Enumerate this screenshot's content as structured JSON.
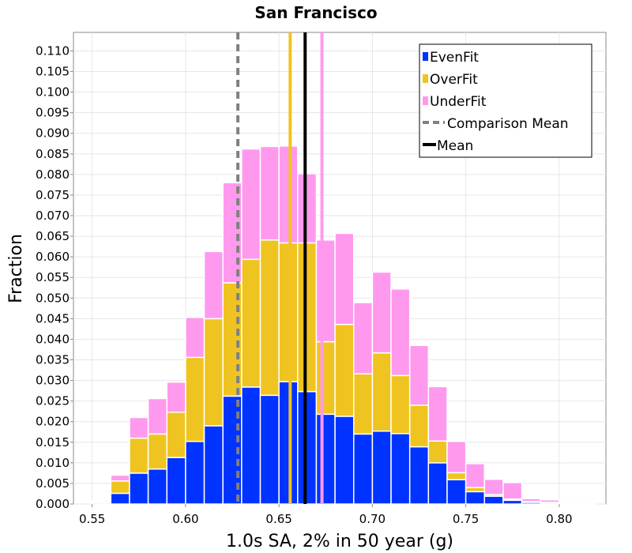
{
  "chart_data": {
    "type": "bar",
    "stacked": true,
    "title": "San Francisco",
    "xlabel": "1.0s SA, 2% in 50 year (g)",
    "ylabel": "Fraction",
    "xlim": [
      0.54,
      0.825
    ],
    "ylim": [
      0.0,
      0.1145
    ],
    "xticks": [
      "0.55",
      "0.60",
      "0.65",
      "0.70",
      "0.75",
      "0.80"
    ],
    "xtick_values": [
      0.55,
      0.6,
      0.65,
      0.7,
      0.75,
      0.8
    ],
    "yticks": [
      "0.000",
      "0.005",
      "0.010",
      "0.015",
      "0.020",
      "0.025",
      "0.030",
      "0.035",
      "0.040",
      "0.045",
      "0.050",
      "0.055",
      "0.060",
      "0.065",
      "0.070",
      "0.075",
      "0.080",
      "0.085",
      "0.090",
      "0.095",
      "0.100",
      "0.105",
      "0.110"
    ],
    "ytick_values": [
      0.0,
      0.005,
      0.01,
      0.015,
      0.02,
      0.025,
      0.03,
      0.035,
      0.04,
      0.045,
      0.05,
      0.055,
      0.06,
      0.065,
      0.07,
      0.075,
      0.08,
      0.085,
      0.09,
      0.095,
      0.1,
      0.105,
      0.11
    ],
    "bin_width": 0.01,
    "bin_centers": [
      0.555,
      0.565,
      0.575,
      0.585,
      0.595,
      0.605,
      0.615,
      0.625,
      0.635,
      0.645,
      0.655,
      0.665,
      0.675,
      0.685,
      0.695,
      0.705,
      0.715,
      0.725,
      0.735,
      0.745,
      0.755,
      0.765,
      0.775,
      0.785,
      0.795,
      0.805,
      0.815
    ],
    "grid": true,
    "legend_position": "top-right",
    "series": [
      {
        "name": "EvenFit",
        "color": "#0033ff",
        "values": [
          0.0003,
          0.0026,
          0.0075,
          0.0085,
          0.0113,
          0.0152,
          0.019,
          0.0262,
          0.0284,
          0.0264,
          0.0297,
          0.0273,
          0.0218,
          0.0213,
          0.017,
          0.0177,
          0.0171,
          0.0139,
          0.01,
          0.0059,
          0.003,
          0.0019,
          0.0009,
          0.0004,
          0.0003,
          0.0002,
          0.0001
        ]
      },
      {
        "name": "OverFit",
        "color": "#f0c420",
        "values": [
          0.0003,
          0.003,
          0.0085,
          0.0085,
          0.011,
          0.0204,
          0.026,
          0.0275,
          0.031,
          0.0377,
          0.0337,
          0.0361,
          0.0176,
          0.0223,
          0.0146,
          0.019,
          0.0141,
          0.0101,
          0.0053,
          0.0017,
          0.001,
          0.0004,
          0.0003,
          0.0002,
          0.0001,
          0.0001,
          0.0001
        ]
      },
      {
        "name": "UnderFit",
        "color": "#ff99ee",
        "values": [
          0.0002,
          0.0014,
          0.005,
          0.0086,
          0.0073,
          0.0097,
          0.0163,
          0.0243,
          0.0268,
          0.0227,
          0.0235,
          0.0168,
          0.0247,
          0.0221,
          0.0173,
          0.0196,
          0.021,
          0.0145,
          0.0132,
          0.0076,
          0.0058,
          0.0037,
          0.004,
          0.0007,
          0.0006,
          0.0003,
          0.0003
        ]
      }
    ],
    "vertical_lines": [
      {
        "name": "Comparison Mean",
        "x": 0.628,
        "color": "#808080",
        "style": "dashed",
        "in_legend": true
      },
      {
        "name": "Mean",
        "x": 0.664,
        "color": "#000000",
        "style": "solid",
        "in_legend": true
      },
      {
        "x": 0.656,
        "color": "#f0c420",
        "style": "solid",
        "in_legend": false
      },
      {
        "x": 0.673,
        "color": "#ff99ee",
        "style": "solid",
        "in_legend": false
      }
    ]
  }
}
